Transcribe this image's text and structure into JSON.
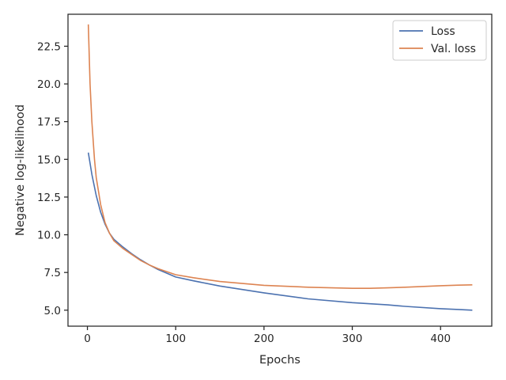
{
  "chart_data": {
    "type": "line",
    "title": "",
    "xlabel": "Epochs",
    "ylabel": "Negative log-likelihood",
    "xlim": [
      -22,
      458
    ],
    "ylim": [
      3.94,
      24.62
    ],
    "xticks": [
      0,
      100,
      200,
      300,
      400
    ],
    "xtick_labels": [
      "0",
      "100",
      "200",
      "300",
      "400"
    ],
    "yticks": [
      5.0,
      7.5,
      10.0,
      12.5,
      15.0,
      17.5,
      20.0,
      22.5
    ],
    "ytick_labels": [
      "5.0",
      "7.5",
      "10.0",
      "12.5",
      "15.0",
      "17.5",
      "20.0",
      "22.5"
    ],
    "grid": false,
    "legend_position": "top-right",
    "series": [
      {
        "name": "Loss",
        "color": "#4c72b0",
        "x": [
          1,
          5,
          10,
          15,
          20,
          25,
          30,
          40,
          50,
          60,
          70,
          80,
          100,
          120,
          150,
          200,
          250,
          300,
          340,
          350,
          360,
          400,
          420,
          436
        ],
        "y": [
          15.45,
          14.0,
          12.6,
          11.5,
          10.7,
          10.1,
          9.7,
          9.2,
          8.75,
          8.35,
          8.0,
          7.7,
          7.2,
          6.95,
          6.6,
          6.15,
          5.75,
          5.5,
          5.35,
          5.3,
          5.25,
          5.1,
          5.05,
          5.0
        ]
      },
      {
        "name": "Val. loss",
        "color": "#dd8452",
        "x": [
          1,
          3,
          5,
          8,
          10,
          15,
          20,
          25,
          30,
          40,
          50,
          60,
          70,
          80,
          100,
          120,
          150,
          200,
          250,
          300,
          320,
          340,
          360,
          400,
          420,
          436
        ],
        "y": [
          23.95,
          20.0,
          17.5,
          15.0,
          13.8,
          12.0,
          10.8,
          10.1,
          9.6,
          9.1,
          8.7,
          8.3,
          8.0,
          7.75,
          7.35,
          7.15,
          6.9,
          6.65,
          6.52,
          6.45,
          6.45,
          6.48,
          6.52,
          6.62,
          6.66,
          6.68
        ]
      }
    ]
  }
}
